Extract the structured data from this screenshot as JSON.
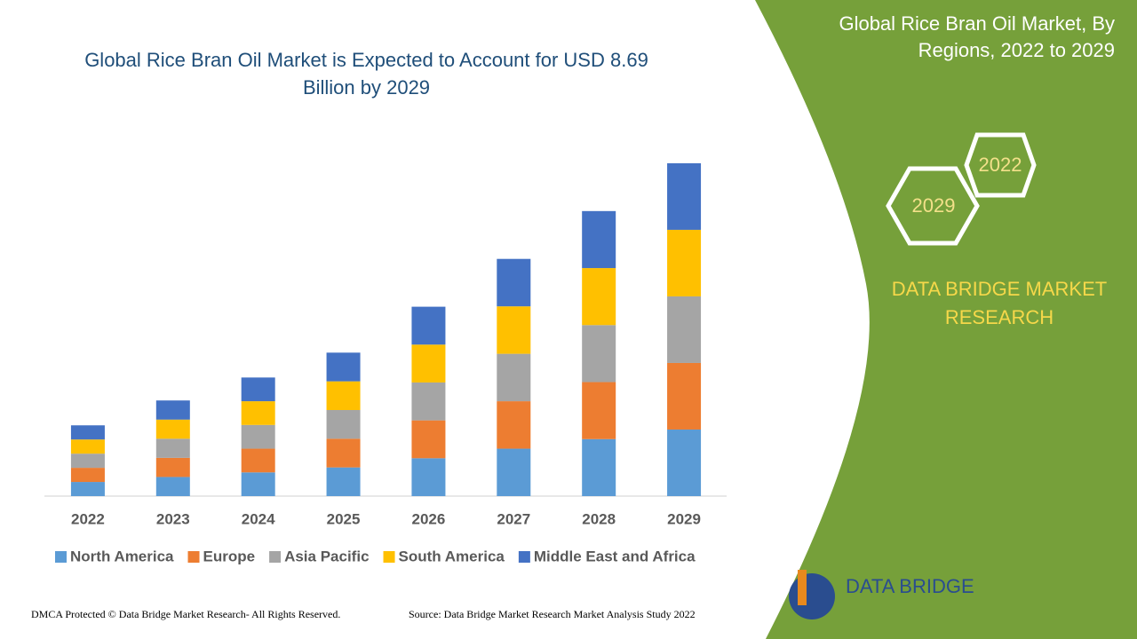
{
  "chart_data": {
    "type": "stacked-bar",
    "title": "Global Rice Bran Oil Market is Expected to Account for USD 8.69 Billion by 2029",
    "categories": [
      "2022",
      "2023",
      "2024",
      "2025",
      "2026",
      "2027",
      "2028",
      "2029"
    ],
    "series": [
      {
        "name": "North America",
        "color": "#5b9bd5",
        "values": [
          0.37,
          0.5,
          0.62,
          0.75,
          0.99,
          1.24,
          1.49,
          1.74
        ]
      },
      {
        "name": "Europe",
        "color": "#ed7d31",
        "values": [
          0.37,
          0.5,
          0.62,
          0.75,
          0.99,
          1.24,
          1.49,
          1.74
        ]
      },
      {
        "name": "Asia Pacific",
        "color": "#a5a5a5",
        "values": [
          0.37,
          0.5,
          0.62,
          0.75,
          0.99,
          1.24,
          1.49,
          1.74
        ]
      },
      {
        "name": "South America",
        "color": "#ffc000",
        "values": [
          0.37,
          0.5,
          0.62,
          0.75,
          0.99,
          1.24,
          1.49,
          1.74
        ]
      },
      {
        "name": "Middle East and Africa",
        "color": "#4472c4",
        "values": [
          0.37,
          0.5,
          0.62,
          0.75,
          0.99,
          1.24,
          1.49,
          1.74
        ]
      }
    ],
    "ylim": [
      0,
      9
    ],
    "legend": "bottom"
  },
  "page": {
    "side_title": "Global Rice Bran Oil Market, By Regions, 2022 to 2029",
    "hex_top": "2022",
    "hex_bottom": "2029",
    "brand": "DATA BRIDGE MARKET RESEARCH",
    "logo": "DATA BRIDGE",
    "footer_left": "DMCA Protected © Data Bridge Market Research- All Rights Reserved.",
    "footer_right": "Source: Data Bridge Market Research Market Analysis Study 2022"
  }
}
